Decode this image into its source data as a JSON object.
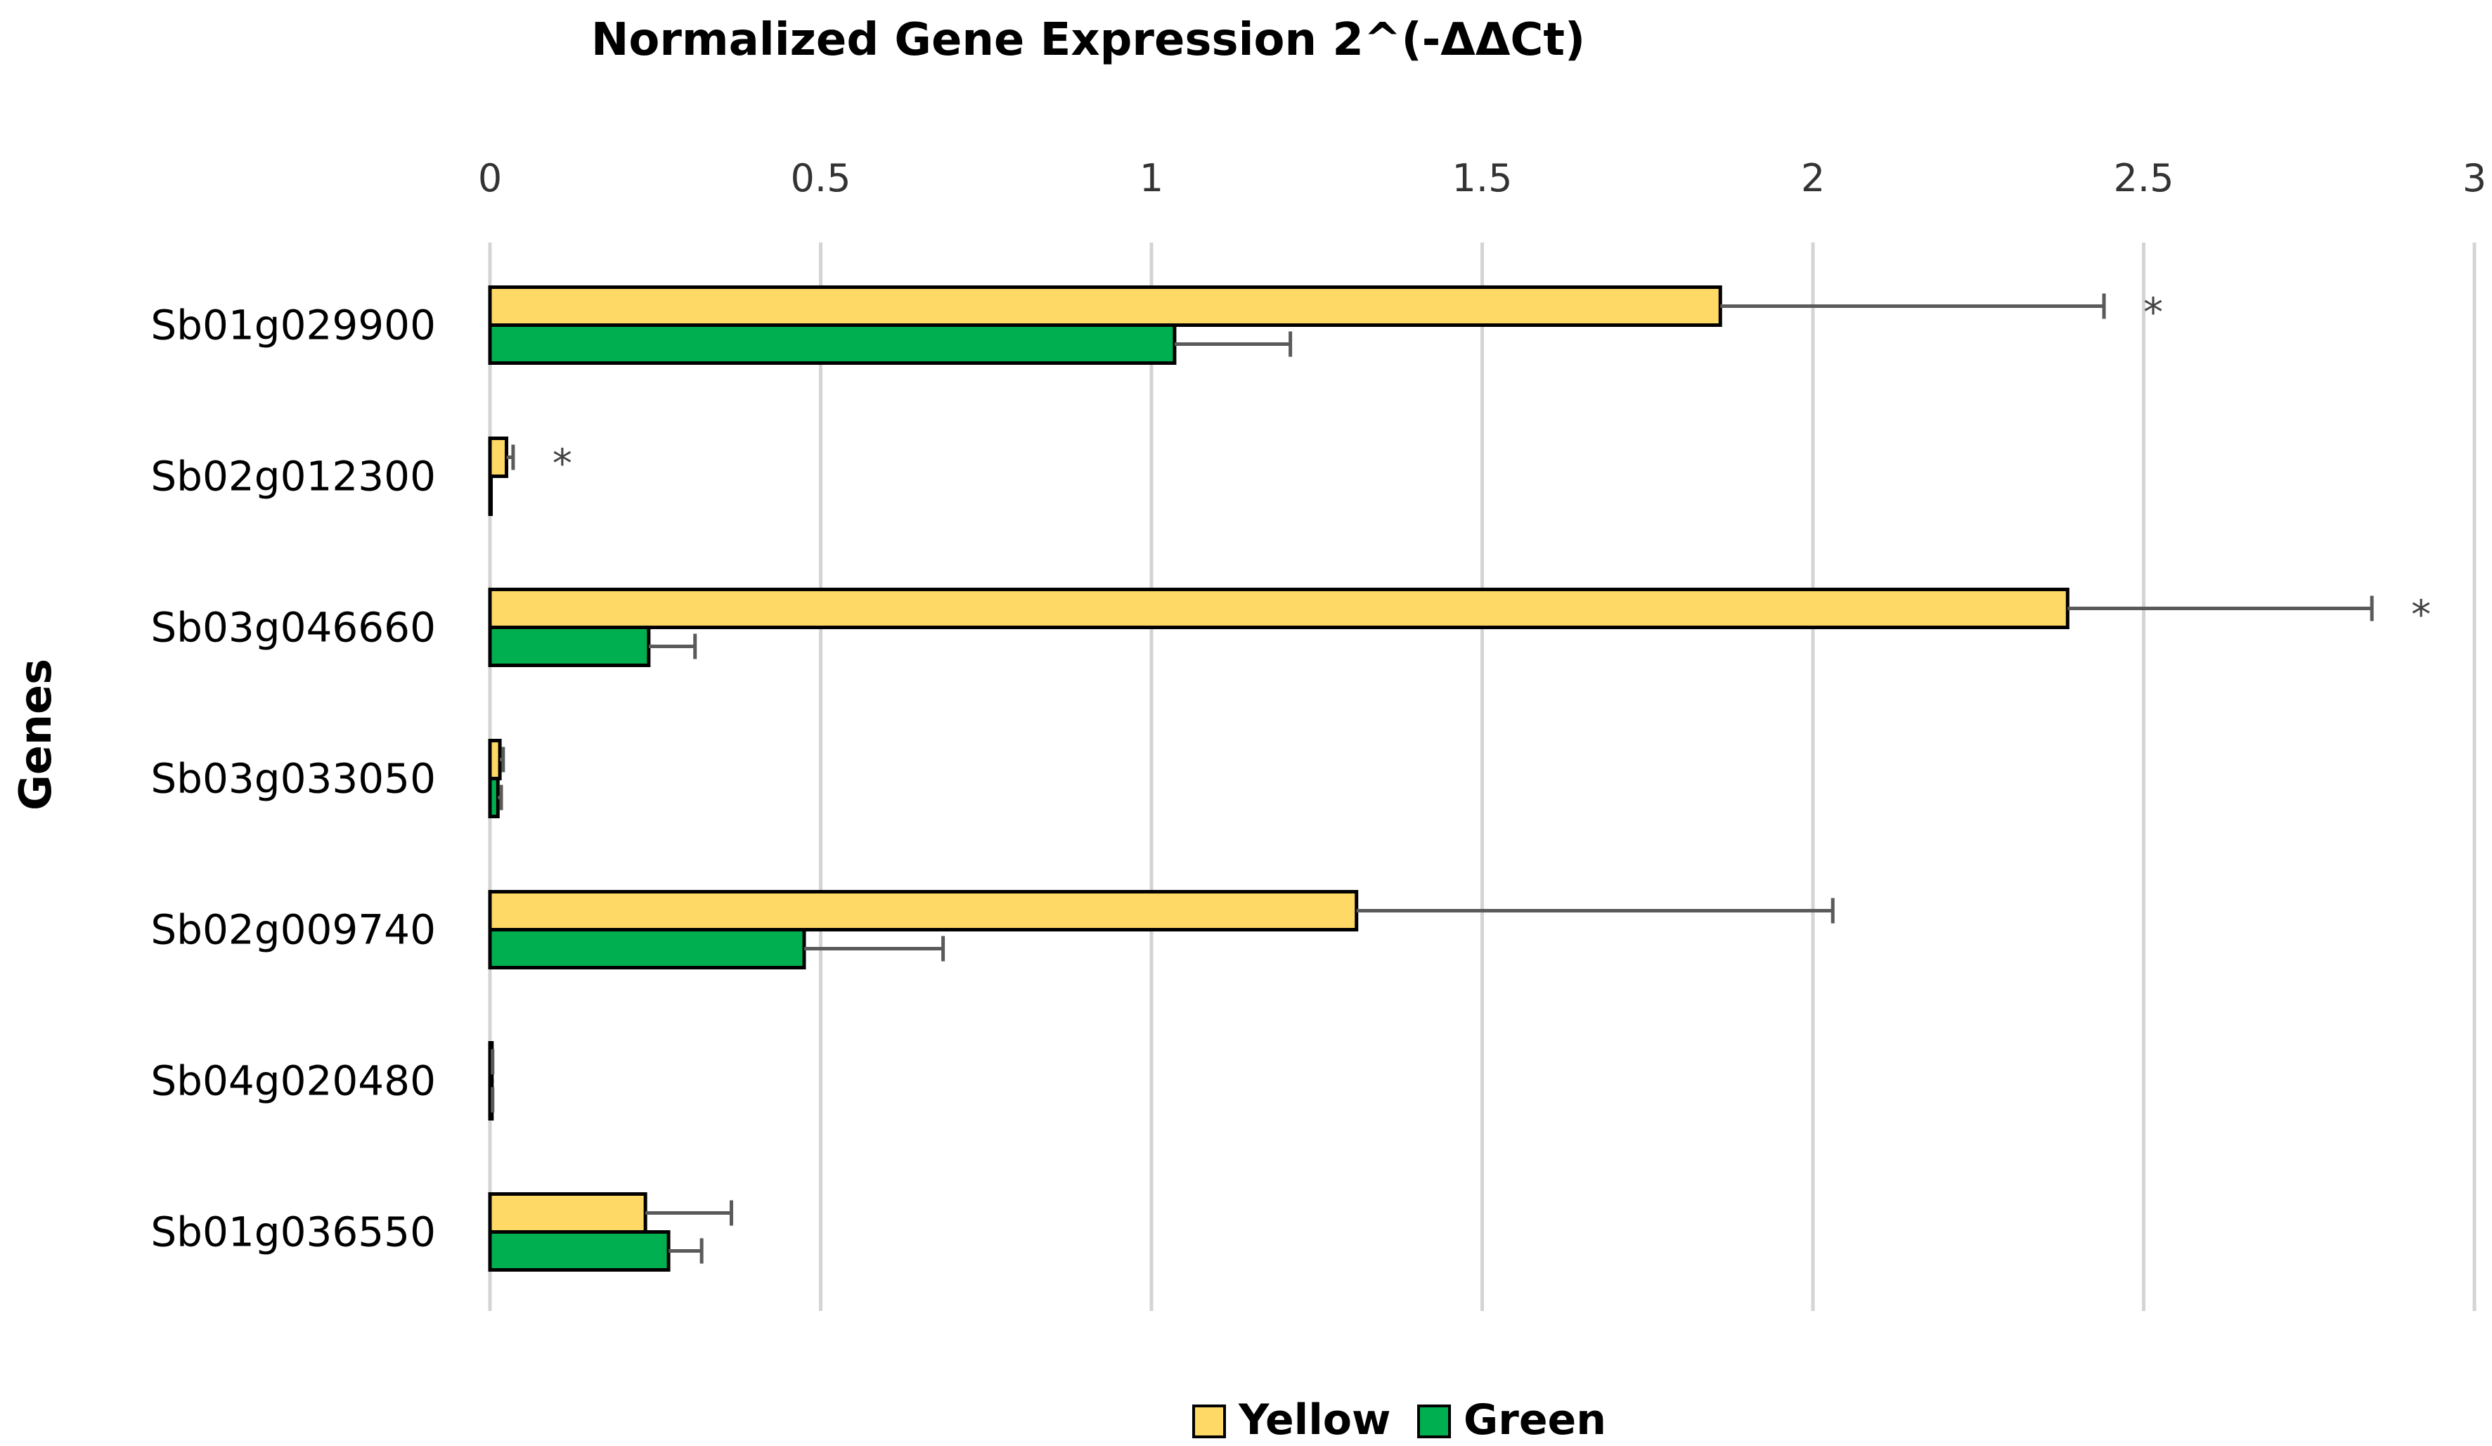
{
  "chart_data": {
    "type": "bar",
    "orientation": "horizontal",
    "title": "Normalized Gene Expression 2^(-ΔΔCt)",
    "xlabel": "Normalized Gene Expression 2^(-ΔΔCt)",
    "ylabel": "Genes",
    "xlim": [
      0,
      3
    ],
    "xticks": [
      "0",
      "0.5",
      "1",
      "1.5",
      "2",
      "2.5",
      "3"
    ],
    "xtick_values": [
      0,
      0.5,
      1,
      1.5,
      2,
      2.5,
      3
    ],
    "grid": true,
    "legend_position": "bottom",
    "categories": [
      "Sb01g029900",
      "Sb02g012300",
      "Sb03g046660",
      "Sb03g033050",
      "Sb02g009740",
      "Sb04g020480",
      "Sb01g036550"
    ],
    "series": [
      {
        "name": "Yellow",
        "color": "#FFD966",
        "values": [
          1.86,
          0.025,
          2.385,
          0.015,
          1.31,
          0.003,
          0.235
        ],
        "errors": [
          0.58,
          0.01,
          0.46,
          0.005,
          0.72,
          0.001,
          0.13
        ],
        "significance": [
          "*",
          "*",
          "*",
          "",
          "",
          "",
          ""
        ]
      },
      {
        "name": "Green",
        "color": "#00B050",
        "values": [
          1.035,
          0.001,
          0.24,
          0.012,
          0.475,
          0.003,
          0.27
        ],
        "errors": [
          0.175,
          0.0,
          0.07,
          0.005,
          0.21,
          0.001,
          0.05
        ],
        "significance": [
          "",
          "",
          "",
          "",
          "",
          "",
          ""
        ]
      }
    ]
  }
}
